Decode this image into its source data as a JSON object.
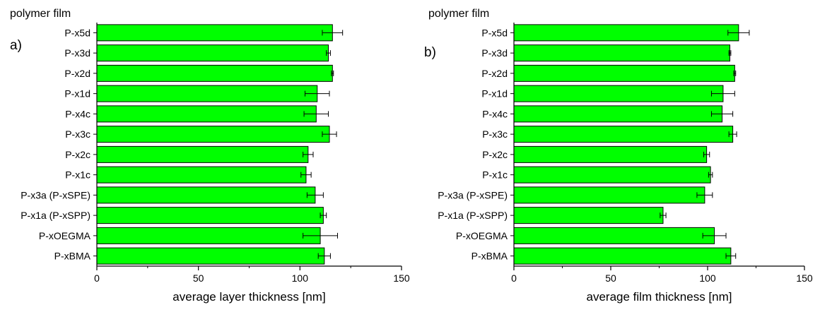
{
  "bar_color": "#00ff00",
  "chart_data": [
    {
      "type": "bar",
      "orientation": "horizontal",
      "panel_label": "a)",
      "ylabel": "polymer film",
      "xlabel": "average layer thickness [nm]",
      "xlim": [
        0,
        150
      ],
      "xticks": [
        0,
        50,
        100,
        150
      ],
      "categories": [
        "P-x5d",
        "P-x3d",
        "P-x2d",
        "P-x1d",
        "P-x4c",
        "P-x3c",
        "P-x2c",
        "P-x1c",
        "P-x3a (P-xSPE)",
        "P-x1a (P-xSPP)",
        "P-xOEGMA",
        "P-xBMA"
      ],
      "values": [
        116,
        114,
        116,
        108.5,
        108,
        114.5,
        104,
        103,
        107.5,
        111.5,
        110,
        112
      ],
      "errors": [
        5,
        1,
        0.5,
        6,
        6,
        3.5,
        2.5,
        2.5,
        4,
        1.5,
        8.5,
        3
      ]
    },
    {
      "type": "bar",
      "orientation": "horizontal",
      "panel_label": "b)",
      "ylabel": "polymer film",
      "xlabel": "average film thickness [nm]",
      "xlim": [
        0,
        150
      ],
      "xticks": [
        0,
        50,
        100,
        150
      ],
      "categories": [
        "P-x5d",
        "P-x3d",
        "P-x2d",
        "P-x1d",
        "P-x4c",
        "P-x3c",
        "P-x2c",
        "P-x1c",
        "P-x3a (P-xSPE)",
        "P-x1a (P-xSPP)",
        "P-xOEGMA",
        "P-xBMA"
      ],
      "values": [
        116,
        111.5,
        114,
        108,
        107.5,
        113,
        99.5,
        101.5,
        98.5,
        77,
        103.5,
        112
      ],
      "errors": [
        5.5,
        0.5,
        0.5,
        6,
        5.5,
        2,
        1.5,
        1,
        4,
        1.5,
        6,
        2.5
      ]
    }
  ]
}
